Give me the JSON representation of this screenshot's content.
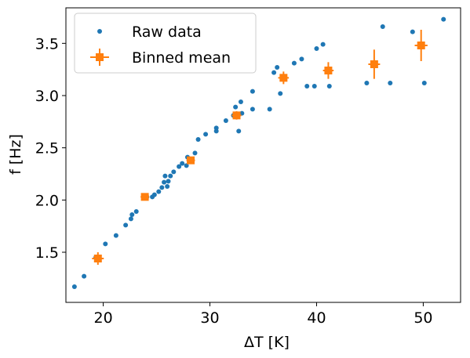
{
  "chart_data": {
    "type": "scatter",
    "title": "",
    "xlabel": "ΔT [K]",
    "ylabel": "f [Hz]",
    "xlim": [
      16.5,
      53.5
    ],
    "ylim": [
      1.02,
      3.84
    ],
    "xticks": [
      20,
      30,
      40,
      50
    ],
    "yticks": [
      1.5,
      2.0,
      2.5,
      3.0,
      3.5
    ],
    "xtick_labels": [
      "20",
      "30",
      "40",
      "50"
    ],
    "ytick_labels": [
      "1.5",
      "2.0",
      "2.5",
      "3.0",
      "3.5"
    ],
    "grid": false,
    "legend_position": "top-left",
    "colors": {
      "raw": "#1f77b4",
      "binned": "#ff7f0e"
    },
    "series": [
      {
        "name": "Raw data",
        "type": "scatter",
        "color": "#1f77b4",
        "points": [
          [
            17.3,
            1.17
          ],
          [
            18.2,
            1.27
          ],
          [
            19.3,
            1.45
          ],
          [
            19.5,
            1.44
          ],
          [
            20.2,
            1.58
          ],
          [
            21.2,
            1.66
          ],
          [
            22.1,
            1.76
          ],
          [
            22.6,
            1.82
          ],
          [
            22.7,
            1.86
          ],
          [
            23.1,
            1.89
          ],
          [
            24.1,
            2.03
          ],
          [
            24.6,
            2.03
          ],
          [
            24.8,
            2.05
          ],
          [
            25.2,
            2.08
          ],
          [
            25.5,
            2.12
          ],
          [
            25.7,
            2.17
          ],
          [
            25.8,
            2.23
          ],
          [
            26.0,
            2.13
          ],
          [
            26.1,
            2.18
          ],
          [
            26.3,
            2.23
          ],
          [
            26.6,
            2.27
          ],
          [
            27.1,
            2.32
          ],
          [
            27.4,
            2.35
          ],
          [
            27.8,
            2.33
          ],
          [
            27.9,
            2.41
          ],
          [
            28.2,
            2.38
          ],
          [
            28.6,
            2.45
          ],
          [
            28.9,
            2.58
          ],
          [
            29.6,
            2.63
          ],
          [
            30.6,
            2.66
          ],
          [
            30.6,
            2.69
          ],
          [
            31.5,
            2.76
          ],
          [
            32.2,
            2.81
          ],
          [
            32.4,
            2.89
          ],
          [
            32.7,
            2.66
          ],
          [
            32.9,
            2.94
          ],
          [
            33.0,
            2.83
          ],
          [
            34.0,
            3.04
          ],
          [
            34.0,
            2.87
          ],
          [
            35.6,
            2.87
          ],
          [
            36.0,
            3.22
          ],
          [
            36.3,
            3.27
          ],
          [
            36.6,
            3.02
          ],
          [
            37.9,
            3.31
          ],
          [
            38.6,
            3.35
          ],
          [
            39.1,
            3.09
          ],
          [
            39.8,
            3.09
          ],
          [
            40.0,
            3.45
          ],
          [
            40.6,
            3.49
          ],
          [
            41.2,
            3.09
          ],
          [
            44.7,
            3.12
          ],
          [
            46.2,
            3.66
          ],
          [
            46.9,
            3.12
          ],
          [
            49.0,
            3.61
          ],
          [
            50.1,
            3.12
          ],
          [
            51.9,
            3.73
          ]
        ]
      },
      {
        "name": "Binned mean",
        "type": "errorbar",
        "color": "#ff7f0e",
        "points": [
          {
            "x": 19.5,
            "y": 1.44,
            "xerr": 0.55,
            "yerr": 0.06
          },
          {
            "x": 23.9,
            "y": 2.03,
            "xerr": 0.4,
            "yerr": 0.02
          },
          {
            "x": 28.2,
            "y": 2.38,
            "xerr": 0.4,
            "yerr": 0.03
          },
          {
            "x": 32.5,
            "y": 2.81,
            "xerr": 0.45,
            "yerr": 0.04
          },
          {
            "x": 36.9,
            "y": 3.17,
            "xerr": 0.5,
            "yerr": 0.06
          },
          {
            "x": 41.1,
            "y": 3.24,
            "xerr": 0.5,
            "yerr": 0.08
          },
          {
            "x": 45.4,
            "y": 3.3,
            "xerr": 0.55,
            "yerr": 0.14
          },
          {
            "x": 49.8,
            "y": 3.48,
            "xerr": 0.6,
            "yerr": 0.15
          }
        ]
      }
    ]
  }
}
